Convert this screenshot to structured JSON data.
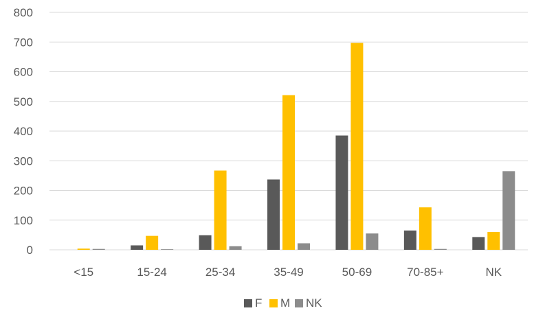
{
  "chart_data": {
    "type": "bar",
    "categories": [
      "<15",
      "15-24",
      "25-34",
      "35-49",
      "50-69",
      "70-85+",
      "NK"
    ],
    "series": [
      {
        "name": "F",
        "color": "#595959",
        "values": [
          0,
          15,
          49,
          237,
          385,
          65,
          43
        ]
      },
      {
        "name": "M",
        "color": "#FFC000",
        "values": [
          4,
          47,
          267,
          521,
          697,
          143,
          60
        ]
      },
      {
        "name": "NK",
        "color": "#8C8C8C",
        "values": [
          3,
          2,
          12,
          22,
          55,
          3,
          265
        ]
      }
    ],
    "ylim": [
      0,
      800
    ],
    "yticks": [
      0,
      100,
      200,
      300,
      400,
      500,
      600,
      700,
      800
    ],
    "grid": true,
    "legend": "bottom"
  }
}
